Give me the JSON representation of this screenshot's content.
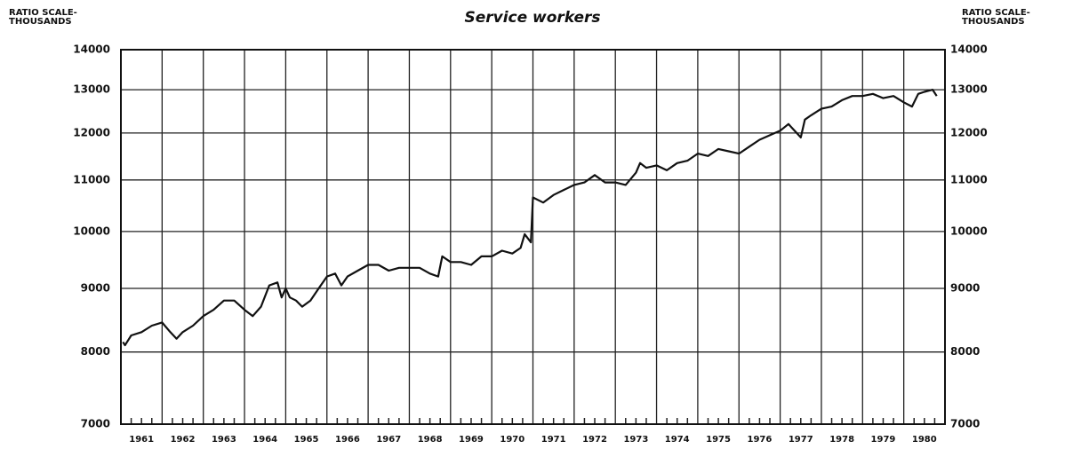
{
  "chart_data": {
    "type": "line",
    "title": "Service workers",
    "y_label": "RATIO SCALE-\nTHOUSANDS",
    "y2_label": "RATIO SCALE-\nTHOUSANDS",
    "log_scale": true,
    "grid": true,
    "xlim": [
      1961,
      1981
    ],
    "ylim": [
      7000,
      14000
    ],
    "xticks": [
      {
        "value": 1961.5,
        "label": "1961"
      },
      {
        "value": 1962.5,
        "label": "1962"
      },
      {
        "value": 1963.5,
        "label": "1963"
      },
      {
        "value": 1964.5,
        "label": "1964"
      },
      {
        "value": 1965.5,
        "label": "1965"
      },
      {
        "value": 1966.5,
        "label": "1966"
      },
      {
        "value": 1967.5,
        "label": "1967"
      },
      {
        "value": 1968.5,
        "label": "1968"
      },
      {
        "value": 1969.5,
        "label": "1969"
      },
      {
        "value": 1970.5,
        "label": "1970"
      },
      {
        "value": 1971.5,
        "label": "1971"
      },
      {
        "value": 1972.5,
        "label": "1972"
      },
      {
        "value": 1973.5,
        "label": "1973"
      },
      {
        "value": 1974.5,
        "label": "1974"
      },
      {
        "value": 1975.5,
        "label": "1975"
      },
      {
        "value": 1976.5,
        "label": "1976"
      },
      {
        "value": 1977.5,
        "label": "1977"
      },
      {
        "value": 1978.5,
        "label": "1978"
      },
      {
        "value": 1979.5,
        "label": "1979"
      },
      {
        "value": 1980.5,
        "label": "1980"
      }
    ],
    "yticks": [
      7000,
      8000,
      9000,
      10000,
      11000,
      12000,
      13000,
      14000
    ],
    "series": [
      {
        "name": "Service workers",
        "color": "#111111",
        "x": [
          1961.05,
          1961.1,
          1961.25,
          1961.5,
          1961.75,
          1962.0,
          1962.2,
          1962.35,
          1962.5,
          1962.75,
          1963.0,
          1963.25,
          1963.5,
          1963.75,
          1964.0,
          1964.2,
          1964.4,
          1964.6,
          1964.8,
          1964.9,
          1965.0,
          1965.1,
          1965.25,
          1965.4,
          1965.6,
          1965.8,
          1966.0,
          1966.2,
          1966.35,
          1966.5,
          1966.75,
          1967.0,
          1967.25,
          1967.5,
          1967.75,
          1968.0,
          1968.25,
          1968.5,
          1968.7,
          1968.8,
          1969.0,
          1969.25,
          1969.5,
          1969.75,
          1970.0,
          1970.25,
          1970.5,
          1970.7,
          1970.8,
          1970.95,
          1971.0,
          1971.25,
          1971.5,
          1971.75,
          1972.0,
          1972.25,
          1972.5,
          1972.75,
          1973.0,
          1973.25,
          1973.5,
          1973.6,
          1973.75,
          1974.0,
          1974.25,
          1974.5,
          1974.75,
          1975.0,
          1975.25,
          1975.5,
          1975.75,
          1976.0,
          1976.25,
          1976.5,
          1976.75,
          1977.0,
          1977.2,
          1977.4,
          1977.5,
          1977.6,
          1977.75,
          1978.0,
          1978.25,
          1978.5,
          1978.75,
          1979.0,
          1979.25,
          1979.5,
          1979.75,
          1980.0,
          1980.2,
          1980.35,
          1980.5,
          1980.7,
          1980.8
        ],
        "values": [
          8150,
          8100,
          8250,
          8300,
          8400,
          8450,
          8300,
          8200,
          8300,
          8400,
          8550,
          8650,
          8800,
          8800,
          8650,
          8550,
          8700,
          9050,
          9100,
          8850,
          9000,
          8850,
          8800,
          8700,
          8800,
          9000,
          9200,
          9250,
          9050,
          9200,
          9300,
          9400,
          9400,
          9300,
          9350,
          9350,
          9350,
          9250,
          9200,
          9550,
          9450,
          9450,
          9400,
          9550,
          9550,
          9650,
          9600,
          9700,
          9950,
          9800,
          10650,
          10550,
          10700,
          10800,
          10900,
          10950,
          11100,
          10950,
          10950,
          10900,
          11150,
          11350,
          11250,
          11300,
          11200,
          11350,
          11400,
          11550,
          11500,
          11650,
          11600,
          11550,
          11700,
          11850,
          11950,
          12050,
          12200,
          12000,
          11900,
          12300,
          12400,
          12550,
          12600,
          12750,
          12850,
          12850,
          12900,
          12800,
          12850,
          12700,
          12600,
          12900,
          12950,
          13000,
          12850
        ]
      }
    ]
  }
}
